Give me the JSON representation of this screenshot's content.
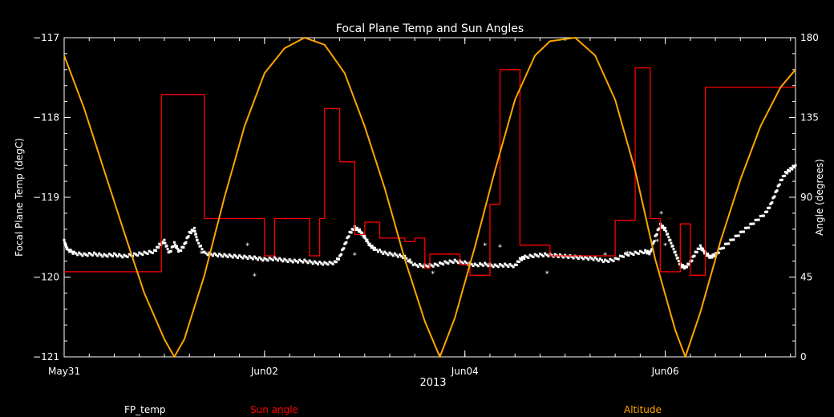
{
  "chart_data": {
    "type": "line",
    "title": "Focal Plane Temp and Sun Angles",
    "xlabel": "2013",
    "ylabel_left": "Focal Plane Temp (degC)",
    "ylabel_right": "Angle (degrees)",
    "x_unit": "days since May31 2013 00:00",
    "xlim": [
      0,
      7.3
    ],
    "ylim_left": [
      -121,
      -117
    ],
    "ylim_right": [
      0,
      180
    ],
    "x_ticks": [
      {
        "x": 0,
        "label": "May31"
      },
      {
        "x": 2,
        "label": "Jun02"
      },
      {
        "x": 4,
        "label": "Jun04"
      },
      {
        "x": 6,
        "label": "Jun06"
      }
    ],
    "y_left_ticks": [
      {
        "v": -121,
        "label": "−121"
      },
      {
        "v": -120,
        "label": "−120"
      },
      {
        "v": -119,
        "label": "−119"
      },
      {
        "v": -118,
        "label": "−118"
      },
      {
        "v": -117,
        "label": "−117"
      }
    ],
    "y_right_ticks": [
      {
        "v": 0,
        "label": "0"
      },
      {
        "v": 45,
        "label": "45"
      },
      {
        "v": 90,
        "label": "90"
      },
      {
        "v": 135,
        "label": "135"
      },
      {
        "v": 180,
        "label": "180"
      }
    ],
    "legend": [
      {
        "label": "FP_temp",
        "color": "#ffffff"
      },
      {
        "label": "Sun angle",
        "color": "#ff0000"
      },
      {
        "label": "Altitude",
        "color": "#ffa500"
      }
    ],
    "series": [
      {
        "name": "FP_temp",
        "axis": "left",
        "style": "points",
        "color": "#ffffff",
        "points": [
          [
            0.0,
            -119.55
          ],
          [
            0.03,
            -119.65
          ],
          [
            0.1,
            -119.7
          ],
          [
            0.2,
            -119.72
          ],
          [
            0.3,
            -119.71
          ],
          [
            0.4,
            -119.73
          ],
          [
            0.5,
            -119.72
          ],
          [
            0.6,
            -119.74
          ],
          [
            0.7,
            -119.72
          ],
          [
            0.8,
            -119.7
          ],
          [
            0.9,
            -119.68
          ],
          [
            0.95,
            -119.6
          ],
          [
            1.0,
            -119.55
          ],
          [
            1.05,
            -119.7
          ],
          [
            1.1,
            -119.58
          ],
          [
            1.15,
            -119.68
          ],
          [
            1.2,
            -119.6
          ],
          [
            1.25,
            -119.45
          ],
          [
            1.3,
            -119.4
          ],
          [
            1.33,
            -119.55
          ],
          [
            1.4,
            -119.7
          ],
          [
            1.5,
            -119.72
          ],
          [
            1.6,
            -119.73
          ],
          [
            1.7,
            -119.74
          ],
          [
            1.8,
            -119.75
          ],
          [
            1.9,
            -119.76
          ],
          [
            2.0,
            -119.78
          ],
          [
            2.1,
            -119.77
          ],
          [
            2.2,
            -119.79
          ],
          [
            2.3,
            -119.8
          ],
          [
            2.4,
            -119.8
          ],
          [
            2.5,
            -119.82
          ],
          [
            2.6,
            -119.83
          ],
          [
            2.7,
            -119.82
          ],
          [
            2.75,
            -119.75
          ],
          [
            2.8,
            -119.6
          ],
          [
            2.85,
            -119.45
          ],
          [
            2.9,
            -119.38
          ],
          [
            2.95,
            -119.42
          ],
          [
            3.0,
            -119.5
          ],
          [
            3.05,
            -119.6
          ],
          [
            3.1,
            -119.65
          ],
          [
            3.2,
            -119.7
          ],
          [
            3.3,
            -119.72
          ],
          [
            3.4,
            -119.75
          ],
          [
            3.5,
            -119.85
          ],
          [
            3.6,
            -119.86
          ],
          [
            3.7,
            -119.85
          ],
          [
            3.8,
            -119.82
          ],
          [
            3.9,
            -119.8
          ],
          [
            4.0,
            -119.82
          ],
          [
            4.1,
            -119.85
          ],
          [
            4.2,
            -119.84
          ],
          [
            4.3,
            -119.86
          ],
          [
            4.4,
            -119.85
          ],
          [
            4.5,
            -119.86
          ],
          [
            4.55,
            -119.78
          ],
          [
            4.6,
            -119.75
          ],
          [
            4.7,
            -119.73
          ],
          [
            4.8,
            -119.72
          ],
          [
            4.9,
            -119.73
          ],
          [
            5.0,
            -119.74
          ],
          [
            5.1,
            -119.75
          ],
          [
            5.2,
            -119.76
          ],
          [
            5.3,
            -119.77
          ],
          [
            5.4,
            -119.8
          ],
          [
            5.5,
            -119.78
          ],
          [
            5.6,
            -119.72
          ],
          [
            5.7,
            -119.7
          ],
          [
            5.8,
            -119.68
          ],
          [
            5.85,
            -119.7
          ],
          [
            5.9,
            -119.5
          ],
          [
            5.95,
            -119.35
          ],
          [
            6.0,
            -119.4
          ],
          [
            6.05,
            -119.55
          ],
          [
            6.1,
            -119.7
          ],
          [
            6.15,
            -119.85
          ],
          [
            6.2,
            -119.88
          ],
          [
            6.25,
            -119.82
          ],
          [
            6.3,
            -119.7
          ],
          [
            6.35,
            -119.62
          ],
          [
            6.4,
            -119.7
          ],
          [
            6.45,
            -119.75
          ],
          [
            6.5,
            -119.72
          ],
          [
            6.6,
            -119.6
          ],
          [
            6.7,
            -119.5
          ],
          [
            6.8,
            -119.4
          ],
          [
            6.9,
            -119.3
          ],
          [
            7.0,
            -119.2
          ],
          [
            7.05,
            -119.1
          ],
          [
            7.1,
            -118.95
          ],
          [
            7.15,
            -118.8
          ],
          [
            7.2,
            -118.7
          ],
          [
            7.25,
            -118.65
          ],
          [
            7.3,
            -118.6
          ]
        ],
        "outliers": [
          [
            1.37,
            -119.7
          ],
          [
            1.83,
            -119.6
          ],
          [
            1.9,
            -119.98
          ],
          [
            2.9,
            -119.72
          ],
          [
            3.45,
            -119.82
          ],
          [
            3.68,
            -119.95
          ],
          [
            4.2,
            -119.6
          ],
          [
            4.35,
            -119.62
          ],
          [
            4.82,
            -119.95
          ],
          [
            5.4,
            -119.72
          ],
          [
            5.62,
            -119.7
          ],
          [
            5.92,
            -119.55
          ],
          [
            5.96,
            -119.2
          ],
          [
            6.0,
            -119.6
          ]
        ]
      },
      {
        "name": "Sun angle",
        "axis": "right",
        "style": "step",
        "color": "#ff0000",
        "points": [
          [
            0.0,
            48
          ],
          [
            0.97,
            48
          ],
          [
            0.97,
            148
          ],
          [
            1.4,
            148
          ],
          [
            1.4,
            78
          ],
          [
            2.0,
            78
          ],
          [
            2.0,
            57
          ],
          [
            2.1,
            57
          ],
          [
            2.1,
            78
          ],
          [
            2.45,
            78
          ],
          [
            2.45,
            57
          ],
          [
            2.55,
            57
          ],
          [
            2.55,
            78
          ],
          [
            2.6,
            78
          ],
          [
            2.6,
            140
          ],
          [
            2.75,
            140
          ],
          [
            2.75,
            110
          ],
          [
            2.9,
            110
          ],
          [
            2.9,
            69
          ],
          [
            3.0,
            69
          ],
          [
            3.0,
            76
          ],
          [
            3.15,
            76
          ],
          [
            3.15,
            67
          ],
          [
            3.4,
            67
          ],
          [
            3.4,
            65
          ],
          [
            3.5,
            65
          ],
          [
            3.5,
            67
          ],
          [
            3.6,
            67
          ],
          [
            3.6,
            50
          ],
          [
            3.65,
            50
          ],
          [
            3.65,
            58
          ],
          [
            3.95,
            58
          ],
          [
            3.95,
            52
          ],
          [
            4.05,
            52
          ],
          [
            4.05,
            46
          ],
          [
            4.25,
            46
          ],
          [
            4.25,
            86
          ],
          [
            4.35,
            86
          ],
          [
            4.35,
            162
          ],
          [
            4.55,
            162
          ],
          [
            4.55,
            63
          ],
          [
            4.85,
            63
          ],
          [
            4.85,
            57
          ],
          [
            5.5,
            57
          ],
          [
            5.5,
            77
          ],
          [
            5.7,
            77
          ],
          [
            5.7,
            163
          ],
          [
            5.85,
            163
          ],
          [
            5.85,
            78
          ],
          [
            5.95,
            78
          ],
          [
            5.95,
            48
          ],
          [
            6.15,
            48
          ],
          [
            6.15,
            75
          ],
          [
            6.25,
            75
          ],
          [
            6.25,
            46
          ],
          [
            6.4,
            46
          ],
          [
            6.4,
            152
          ],
          [
            7.3,
            152
          ]
        ]
      },
      {
        "name": "Altitude",
        "axis": "right",
        "style": "curve",
        "color": "#ffa500",
        "points": [
          [
            0.0,
            170
          ],
          [
            0.2,
            140
          ],
          [
            0.4,
            105
          ],
          [
            0.6,
            70
          ],
          [
            0.8,
            36
          ],
          [
            1.0,
            10
          ],
          [
            1.1,
            0
          ],
          [
            1.2,
            10
          ],
          [
            1.4,
            46
          ],
          [
            1.6,
            90
          ],
          [
            1.8,
            130
          ],
          [
            2.0,
            160
          ],
          [
            2.2,
            174
          ],
          [
            2.4,
            180
          ],
          [
            2.6,
            176
          ],
          [
            2.8,
            160
          ],
          [
            3.0,
            130
          ],
          [
            3.2,
            95
          ],
          [
            3.4,
            55
          ],
          [
            3.6,
            20
          ],
          [
            3.75,
            0
          ],
          [
            3.9,
            22
          ],
          [
            4.1,
            62
          ],
          [
            4.3,
            105
          ],
          [
            4.5,
            145
          ],
          [
            4.7,
            170
          ],
          [
            4.85,
            178
          ],
          [
            5.1,
            180
          ],
          [
            5.3,
            170
          ],
          [
            5.5,
            145
          ],
          [
            5.7,
            105
          ],
          [
            5.9,
            55
          ],
          [
            6.1,
            15
          ],
          [
            6.2,
            0
          ],
          [
            6.35,
            25
          ],
          [
            6.55,
            65
          ],
          [
            6.75,
            100
          ],
          [
            6.95,
            130
          ],
          [
            7.15,
            152
          ],
          [
            7.3,
            162
          ]
        ]
      }
    ]
  }
}
